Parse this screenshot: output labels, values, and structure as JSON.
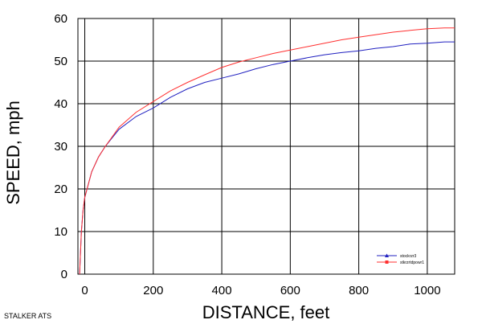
{
  "chart_data": {
    "type": "line",
    "xlabel": "DISTANCE, feet",
    "ylabel": "SPEED, mph",
    "xlim": [
      -20,
      1080
    ],
    "ylim": [
      0,
      60
    ],
    "xticks": [
      0,
      200,
      400,
      600,
      800,
      1000
    ],
    "yticks": [
      0,
      10,
      20,
      30,
      40,
      50,
      60
    ],
    "grid": true,
    "legend_position": "bottom-right",
    "series": [
      {
        "name": "stockrzr3",
        "color": "#2020c0",
        "marker": "triangle",
        "x": [
          -15,
          -10,
          -5,
          0,
          10,
          20,
          40,
          60,
          80,
          100,
          150,
          200,
          250,
          300,
          350,
          400,
          450,
          500,
          550,
          600,
          650,
          700,
          750,
          800,
          850,
          900,
          950,
          1000,
          1050,
          1080
        ],
        "y": [
          0,
          10,
          15,
          18,
          21,
          24,
          27.5,
          30,
          32,
          34,
          37,
          39,
          41.5,
          43.5,
          45,
          46,
          47,
          48.2,
          49.2,
          50,
          50.8,
          51.5,
          52,
          52.4,
          53,
          53.4,
          54,
          54.2,
          54.5,
          54.5
        ]
      },
      {
        "name": "stkrzrtdpowr1",
        "color": "#ff3030",
        "marker": "square",
        "x": [
          -15,
          -10,
          -5,
          0,
          10,
          20,
          40,
          60,
          80,
          100,
          150,
          200,
          250,
          300,
          350,
          400,
          450,
          500,
          550,
          600,
          650,
          700,
          750,
          800,
          850,
          900,
          950,
          1000,
          1050,
          1080
        ],
        "y": [
          0,
          10,
          15,
          18,
          21,
          24,
          27.5,
          30,
          32.2,
          34.5,
          38,
          40.5,
          43,
          45,
          46.8,
          48.5,
          49.8,
          50.8,
          51.8,
          52.6,
          53.4,
          54.2,
          55,
          55.6,
          56.2,
          56.8,
          57.2,
          57.6,
          57.8,
          57.8
        ]
      }
    ]
  },
  "footer_label": "STALKER ATS"
}
